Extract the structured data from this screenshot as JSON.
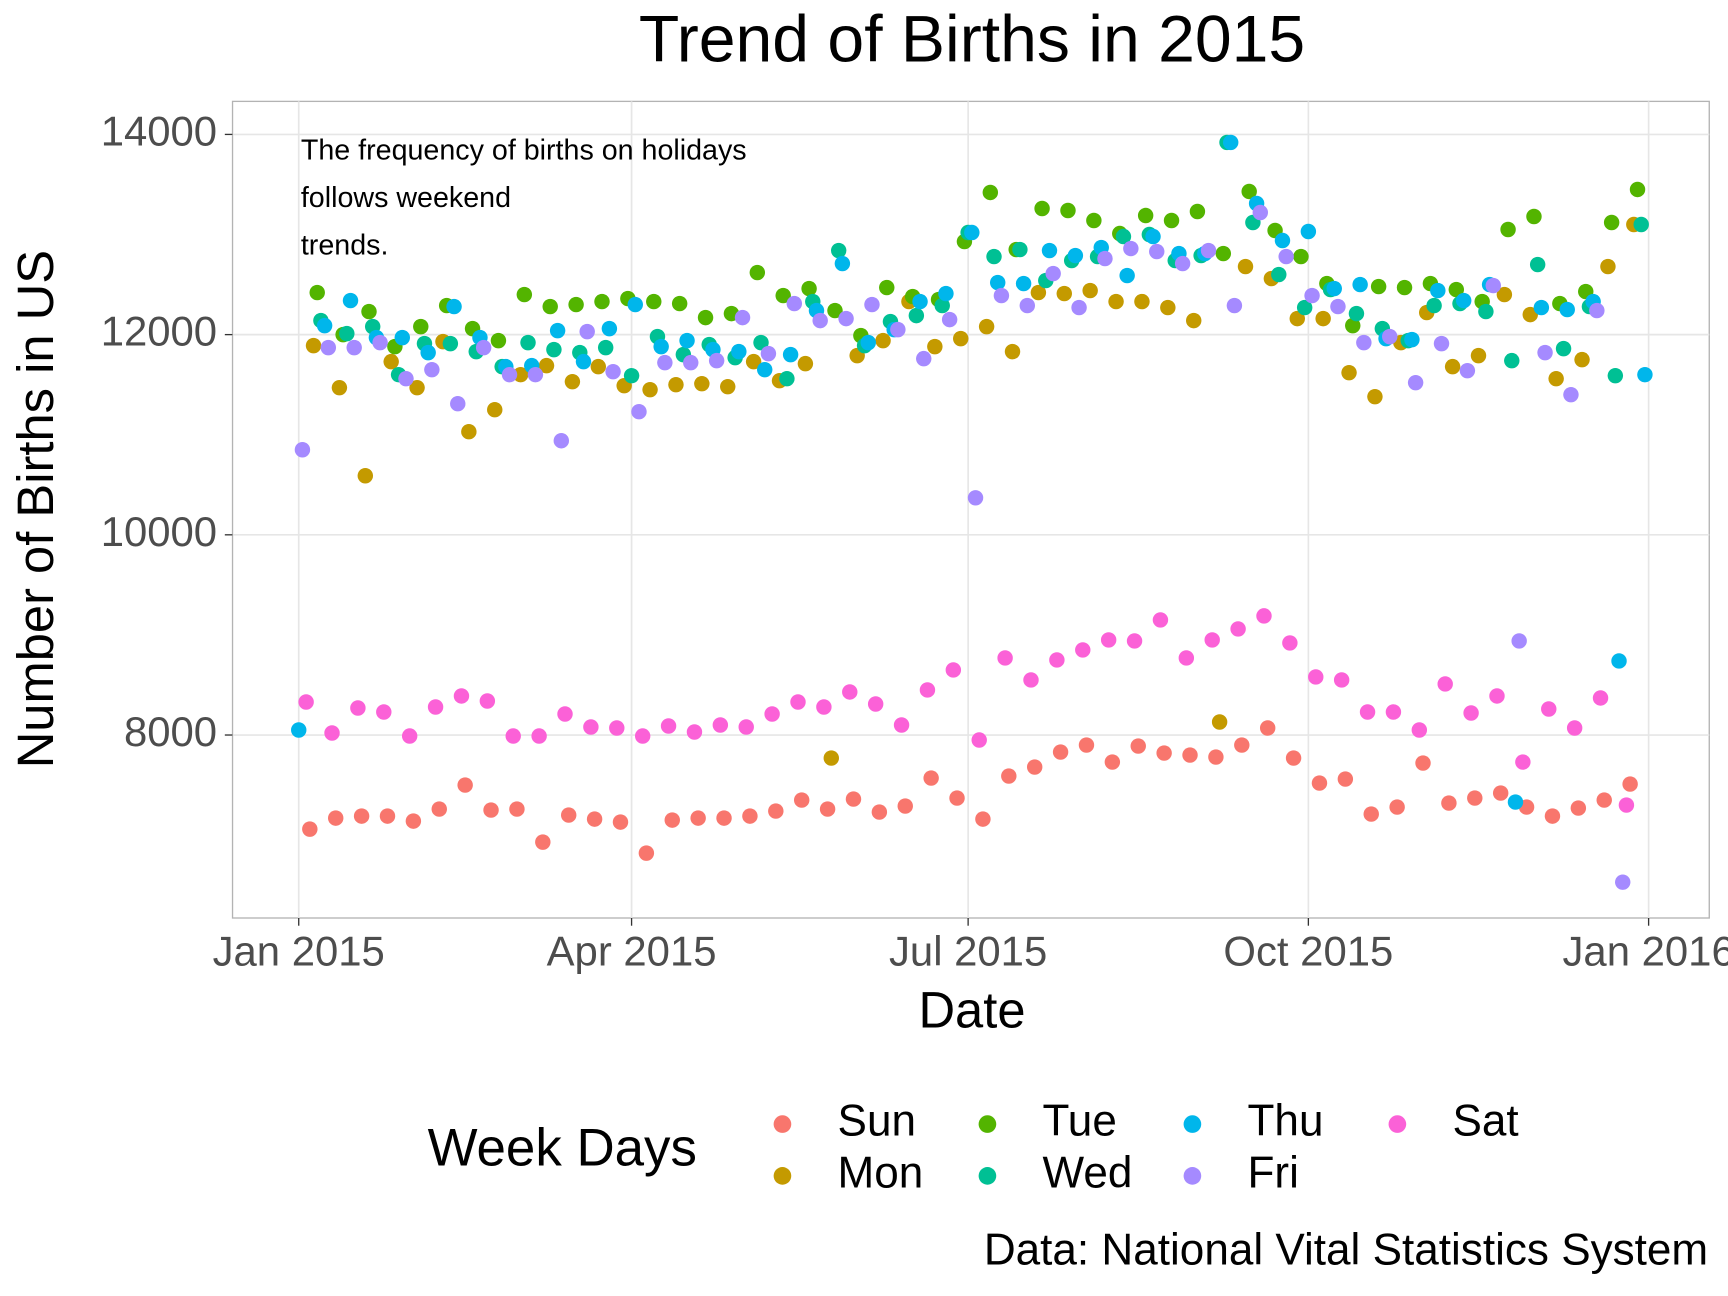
{
  "chart_data": {
    "type": "scatter",
    "title": "Trend of Births in 2015",
    "annotation": [
      "The frequency of births on holidays",
      "follows weekend",
      "trends."
    ],
    "x_label": "Date",
    "y_label": "Number of Births in US",
    "legend_title": "Week Days",
    "caption": "Data: National Vital Statistics System",
    "grid": true,
    "xlim": [
      -17.9,
      381.4
    ],
    "ylim": [
      6172,
      14330
    ],
    "xticks": [
      {
        "value": 0,
        "label": "Jan 2015"
      },
      {
        "value": 90,
        "label": "Apr 2015"
      },
      {
        "value": 181,
        "label": "Jul 2015"
      },
      {
        "value": 273,
        "label": "Oct 2015"
      },
      {
        "value": 365,
        "label": "Jan 2016"
      }
    ],
    "yticks": [
      8000,
      10000,
      12000,
      14000
    ],
    "series": [
      {
        "name": "Sun",
        "color": "#F8766D",
        "x": [
          3,
          10,
          17,
          24,
          31,
          38,
          45,
          52,
          59,
          66,
          73,
          80,
          87,
          94,
          101,
          108,
          115,
          122,
          129,
          136,
          143,
          150,
          157,
          164,
          171,
          178,
          185,
          192,
          199,
          206,
          213,
          220,
          227,
          234,
          241,
          248,
          255,
          262,
          269,
          276,
          283,
          290,
          297,
          304,
          311,
          318,
          325,
          332,
          339,
          346,
          353,
          360
        ],
        "values": [
          7060,
          7170,
          7190,
          7190,
          7140,
          7260,
          7500,
          7250,
          7260,
          6930,
          7200,
          7160,
          7130,
          6820,
          7150,
          7170,
          7170,
          7190,
          7240,
          7350,
          7260,
          7360,
          7230,
          7290,
          7570,
          7370,
          7160,
          7590,
          7680,
          7830,
          7900,
          7730,
          7890,
          7820,
          7800,
          7780,
          7900,
          8070,
          7770,
          7520,
          7560,
          7210,
          7280,
          7720,
          7320,
          7370,
          7420,
          7280,
          7190,
          7270,
          7350,
          7510
        ]
      },
      {
        "name": "Mon",
        "color": "#C49A00",
        "x": [
          4,
          11,
          18,
          25,
          32,
          39,
          46,
          53,
          60,
          67,
          74,
          81,
          88,
          95,
          102,
          109,
          116,
          123,
          130,
          137,
          144,
          151,
          158,
          165,
          172,
          179,
          186,
          193,
          200,
          207,
          214,
          221,
          228,
          235,
          242,
          249,
          256,
          263,
          270,
          277,
          284,
          291,
          298,
          305,
          312,
          319,
          326,
          333,
          340,
          347,
          354,
          361
        ],
        "values": [
          11890,
          11470,
          10590,
          11730,
          11470,
          11930,
          11030,
          11250,
          11600,
          11690,
          11530,
          11680,
          11490,
          11450,
          11500,
          11510,
          11480,
          11730,
          11540,
          11710,
          7770,
          11790,
          11940,
          12330,
          11880,
          11960,
          12080,
          11830,
          12420,
          12410,
          12440,
          12330,
          12330,
          12270,
          12140,
          8130,
          12680,
          12560,
          12160,
          12160,
          11620,
          11380,
          11920,
          12220,
          11680,
          11790,
          12400,
          12200,
          11560,
          11750,
          12680,
          13100
        ]
      },
      {
        "name": "Tue",
        "color": "#53B400",
        "x": [
          5,
          12,
          19,
          26,
          33,
          40,
          47,
          54,
          61,
          68,
          75,
          82,
          89,
          96,
          103,
          110,
          117,
          124,
          131,
          138,
          145,
          152,
          159,
          166,
          173,
          180,
          187,
          194,
          201,
          208,
          215,
          222,
          229,
          236,
          243,
          250,
          257,
          264,
          271,
          278,
          285,
          292,
          299,
          306,
          313,
          320,
          327,
          334,
          341,
          348,
          355,
          362
        ],
        "values": [
          12420,
          12000,
          12230,
          11880,
          12080,
          12290,
          12060,
          11940,
          12400,
          12280,
          12300,
          12330,
          12360,
          12330,
          12310,
          12170,
          12210,
          12620,
          12390,
          12460,
          12240,
          11990,
          12470,
          12380,
          12350,
          12930,
          13420,
          12850,
          13260,
          13240,
          13140,
          13010,
          13190,
          13140,
          13230,
          12810,
          13430,
          13040,
          12780,
          12510,
          12090,
          12480,
          12470,
          12510,
          12450,
          12330,
          13050,
          13180,
          12310,
          12430,
          13120,
          13450
        ]
      },
      {
        "name": "Wed",
        "color": "#00C094",
        "x": [
          6,
          13,
          20,
          27,
          34,
          41,
          48,
          55,
          62,
          69,
          76,
          83,
          90,
          97,
          104,
          111,
          118,
          125,
          132,
          139,
          146,
          153,
          160,
          167,
          174,
          181,
          188,
          195,
          202,
          209,
          216,
          223,
          230,
          237,
          244,
          251,
          258,
          265,
          272,
          279,
          286,
          293,
          300,
          307,
          314,
          321,
          328,
          335,
          342,
          349,
          356,
          363
        ],
        "values": [
          12140,
          12010,
          12080,
          11600,
          11910,
          11910,
          11830,
          11680,
          11920,
          11850,
          11820,
          11870,
          11590,
          11980,
          11800,
          11900,
          11770,
          11920,
          11560,
          12330,
          12840,
          11890,
          12130,
          12190,
          12290,
          13020,
          12780,
          12850,
          12540,
          12740,
          12780,
          12980,
          13000,
          12740,
          12790,
          13920,
          13120,
          12600,
          12270,
          12450,
          12210,
          12060,
          11940,
          12290,
          12310,
          12230,
          11740,
          12700,
          11860,
          12280,
          11590,
          13100
        ]
      },
      {
        "name": "Thu",
        "color": "#00B6EB",
        "x": [
          0,
          7,
          14,
          21,
          28,
          35,
          42,
          49,
          56,
          63,
          70,
          77,
          84,
          91,
          98,
          105,
          112,
          119,
          126,
          133,
          140,
          147,
          154,
          161,
          168,
          175,
          182,
          189,
          196,
          203,
          210,
          217,
          224,
          231,
          238,
          245,
          252,
          259,
          266,
          273,
          280,
          287,
          294,
          301,
          308,
          315,
          322,
          329,
          336,
          343,
          350,
          357,
          364
        ],
        "values": [
          8050,
          12090,
          12340,
          11970,
          11970,
          11820,
          12280,
          11970,
          11680,
          11690,
          12040,
          11730,
          12060,
          12300,
          11880,
          11940,
          11850,
          11830,
          11650,
          11800,
          12240,
          12710,
          11920,
          12050,
          12330,
          12410,
          13020,
          12520,
          12510,
          12840,
          12790,
          12870,
          12590,
          12980,
          12810,
          12810,
          13920,
          13310,
          12940,
          13030,
          12460,
          12500,
          11960,
          11950,
          12440,
          12340,
          12500,
          7330,
          12270,
          12250,
          12330,
          8740,
          11600
        ]
      },
      {
        "name": "Fri",
        "color": "#A58AFF",
        "x": [
          1,
          8,
          15,
          22,
          29,
          36,
          43,
          50,
          57,
          64,
          71,
          78,
          85,
          92,
          99,
          106,
          113,
          120,
          127,
          134,
          141,
          148,
          155,
          162,
          169,
          176,
          183,
          190,
          197,
          204,
          211,
          218,
          225,
          232,
          239,
          246,
          253,
          260,
          267,
          274,
          281,
          288,
          295,
          302,
          309,
          316,
          323,
          330,
          337,
          344,
          351,
          358
        ],
        "values": [
          10850,
          11870,
          11870,
          11920,
          11560,
          11650,
          11310,
          11870,
          11600,
          11600,
          10940,
          12030,
          11630,
          11230,
          11720,
          11720,
          11740,
          12170,
          11810,
          12310,
          12140,
          12160,
          12300,
          12050,
          11760,
          12150,
          10370,
          12390,
          12290,
          12610,
          12270,
          12760,
          12860,
          12830,
          12710,
          12840,
          12290,
          13220,
          12780,
          12390,
          12280,
          11920,
          11980,
          11520,
          11910,
          11640,
          12490,
          8940,
          11820,
          11400,
          12240,
          6530
        ]
      },
      {
        "name": "Sat",
        "color": "#FB61D7",
        "x": [
          2,
          9,
          16,
          23,
          30,
          37,
          44,
          51,
          58,
          65,
          72,
          79,
          86,
          93,
          100,
          107,
          114,
          121,
          128,
          135,
          142,
          149,
          156,
          163,
          170,
          177,
          184,
          191,
          198,
          205,
          212,
          219,
          226,
          233,
          240,
          247,
          254,
          261,
          268,
          275,
          282,
          289,
          296,
          303,
          310,
          317,
          324,
          331,
          338,
          345,
          352,
          359
        ],
        "values": [
          8330,
          8020,
          8270,
          8230,
          7990,
          8280,
          8390,
          8340,
          7990,
          7990,
          8210,
          8080,
          8070,
          7990,
          8090,
          8030,
          8100,
          8080,
          8210,
          8330,
          8280,
          8430,
          8310,
          8100,
          8450,
          8650,
          7950,
          8770,
          8550,
          8750,
          8850,
          8950,
          8940,
          9150,
          8770,
          8950,
          9060,
          9190,
          8920,
          8580,
          8550,
          8230,
          8230,
          8050,
          8510,
          8220,
          8390,
          7730,
          8260,
          8070,
          8370,
          7300
        ]
      }
    ]
  }
}
